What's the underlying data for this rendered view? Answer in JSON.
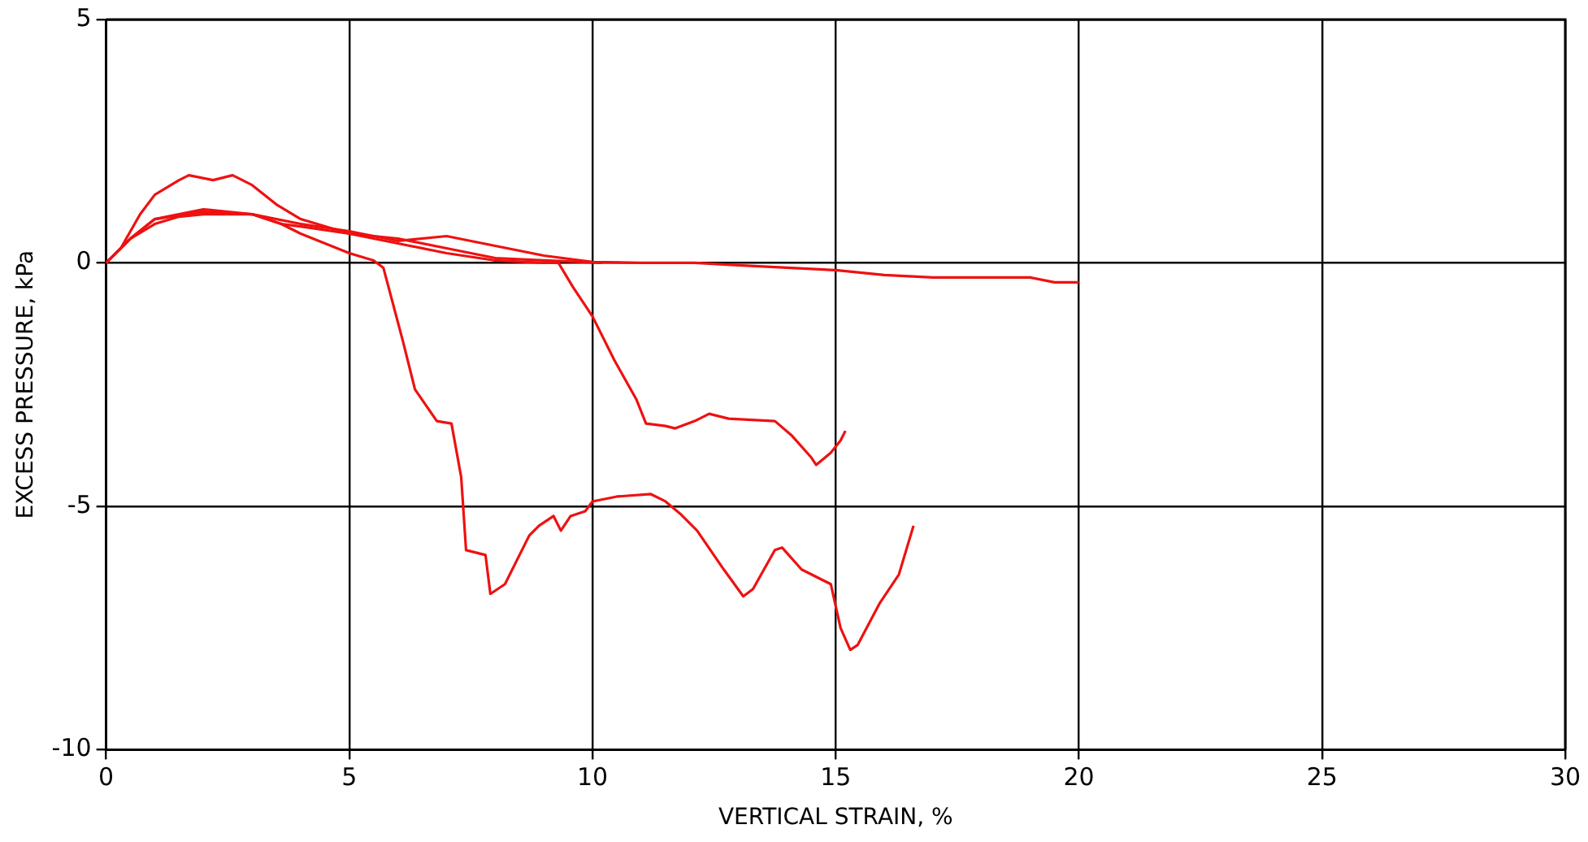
{
  "chart_data": {
    "type": "line",
    "xlabel": "VERTICAL STRAIN, %",
    "ylabel": "EXCESS PRESSURE, kPa",
    "xlim": [
      0,
      30
    ],
    "xticks": [
      0,
      5,
      10,
      15,
      20,
      25,
      30
    ],
    "ylim": [
      -10,
      5
    ],
    "yticks": [
      -10,
      -5,
      0,
      5
    ],
    "grid": true,
    "legend": false,
    "line_style": "solid",
    "series": [
      {
        "color": "#ee1111",
        "x": [
          0,
          0.5,
          1,
          1.5,
          2,
          3,
          3.6,
          4,
          4.5,
          5,
          5.5,
          5.7,
          6.1,
          6.35,
          6.8,
          7.1,
          7.3,
          7.4,
          7.8,
          7.9,
          8.2,
          8.7,
          8.9,
          9.2,
          9.35,
          9.55,
          9.85,
          10,
          10.5,
          11.2,
          11.5,
          11.8,
          12.15,
          12.7,
          13.1,
          13.3,
          13.75,
          13.9,
          14.3,
          14.5,
          14.9,
          15.1,
          15.3,
          15.45,
          15.9,
          16.3,
          16.6
        ],
        "values": [
          0,
          0.5,
          0.8,
          0.95,
          1.0,
          1.0,
          0.8,
          0.6,
          0.4,
          0.2,
          0.05,
          -0.1,
          -1.6,
          -2.6,
          -3.25,
          -3.3,
          -4.4,
          -5.9,
          -6.0,
          -6.8,
          -6.6,
          -5.6,
          -5.4,
          -5.2,
          -5.5,
          -5.2,
          -5.1,
          -4.9,
          -4.8,
          -4.75,
          -4.9,
          -5.15,
          -5.5,
          -6.3,
          -6.85,
          -6.7,
          -5.9,
          -5.85,
          -6.3,
          -6.4,
          -6.6,
          -7.5,
          -7.95,
          -7.85,
          -7.0,
          -6.4,
          -5.4
        ]
      },
      {
        "color": "#ee1111",
        "x": [
          0,
          0.5,
          1,
          2,
          3,
          3.6,
          4,
          5,
          6,
          7,
          8,
          9,
          9.3,
          9.6,
          10,
          10.45,
          10.9,
          11.1,
          11.5,
          11.7,
          12.1,
          12.4,
          12.8,
          13.75,
          14.1,
          14.5,
          14.6,
          14.9,
          15.1,
          15.2
        ],
        "values": [
          0,
          0.5,
          0.9,
          1.1,
          1.0,
          0.8,
          0.75,
          0.6,
          0.4,
          0.2,
          0.05,
          0,
          0,
          -0.5,
          -1.1,
          -2.0,
          -2.8,
          -3.3,
          -3.35,
          -3.4,
          -3.25,
          -3.1,
          -3.2,
          -3.25,
          -3.55,
          -4.0,
          -4.15,
          -3.9,
          -3.65,
          -3.45
        ]
      },
      {
        "color": "#ee1111",
        "x": [
          0,
          0.3,
          0.7,
          1,
          1.5,
          1.7,
          2.2,
          2.6,
          3,
          3.5,
          4,
          5,
          6,
          7,
          8,
          9,
          10.2
        ],
        "values": [
          0,
          0.3,
          1.0,
          1.4,
          1.7,
          1.8,
          1.7,
          1.8,
          1.6,
          1.2,
          0.9,
          0.6,
          0.5,
          0.3,
          0.1,
          0.05,
          0
        ]
      },
      {
        "color": "#ee1111",
        "x": [
          0,
          0.5,
          1,
          2,
          3,
          4,
          5,
          6,
          7,
          8,
          9,
          10,
          11,
          12.1,
          13,
          14,
          15,
          16,
          17,
          19,
          19.5,
          20
        ],
        "values": [
          0,
          0.5,
          0.9,
          1.05,
          1.0,
          0.8,
          0.65,
          0.45,
          0.55,
          0.35,
          0.15,
          0.02,
          0,
          0,
          -0.05,
          -0.1,
          -0.15,
          -0.25,
          -0.3,
          -0.3,
          -0.4,
          -0.4
        ]
      }
    ]
  }
}
